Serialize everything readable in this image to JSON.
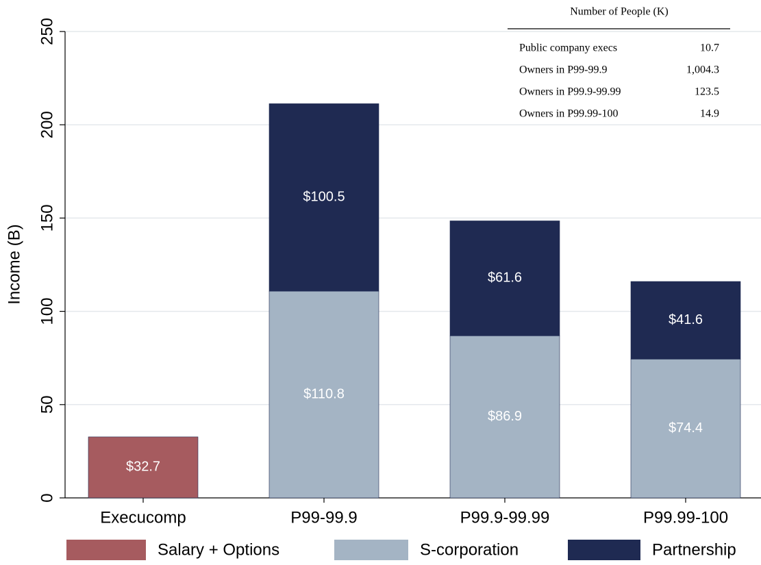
{
  "chart_data": {
    "type": "stacked_bar",
    "ylabel": "Income (B)",
    "categories": [
      "Execucomp",
      "P99-99.9",
      "P99.9-99.99",
      "P99.99-100"
    ],
    "series": [
      {
        "name": "Salary + Options",
        "color": "#a65b5f",
        "values": [
          32.7,
          null,
          null,
          null
        ],
        "value_labels": [
          "$32.7",
          null,
          null,
          null
        ]
      },
      {
        "name": "S-corporation",
        "color": "#a4b4c4",
        "values": [
          null,
          110.8,
          86.9,
          74.4
        ],
        "value_labels": [
          null,
          "$110.8",
          "$86.9",
          "$74.4"
        ]
      },
      {
        "name": "Partnership",
        "color": "#1f2a52",
        "values": [
          null,
          100.5,
          61.6,
          41.6
        ],
        "value_labels": [
          null,
          "$100.5",
          "$61.6",
          "$41.6"
        ]
      }
    ],
    "ylim": [
      0,
      250
    ],
    "yticks": [
      0,
      50,
      100,
      150,
      200,
      250
    ],
    "grid": true,
    "legend": "bottom",
    "table": {
      "title": "Number of People (K)",
      "rows": [
        [
          "Public company execs",
          "10.7"
        ],
        [
          "Owners in P99-99.9",
          "1,004.3"
        ],
        [
          "Owners in P99.9-99.99",
          "123.5"
        ],
        [
          "Owners in P99.99-100",
          "14.9"
        ]
      ]
    }
  }
}
